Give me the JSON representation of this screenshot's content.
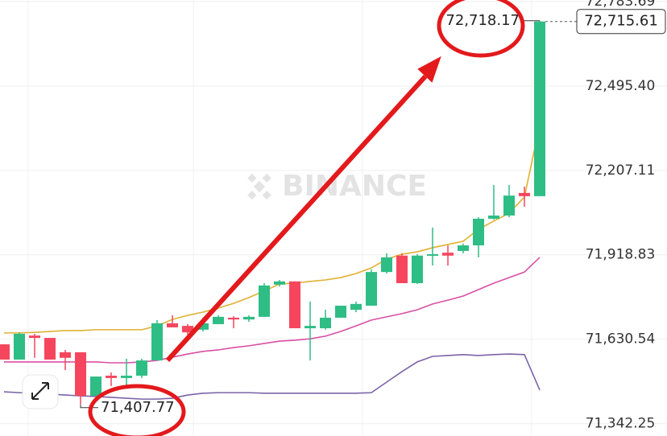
{
  "chart_data": {
    "type": "candlestick",
    "watermark": "BINANCE",
    "up_color": "#2ebd85",
    "down_color": "#f6465d",
    "open": [
      71613,
      71561,
      71643,
      71635,
      71586,
      71586,
      71437,
      71506,
      71498,
      71506,
      71558,
      71685,
      71676,
      71663,
      71682,
      71704,
      71698,
      71707,
      71817,
      71828,
      71668,
      71668,
      71704,
      71731,
      71745,
      71860,
      71916,
      71822,
      71916,
      71926,
      71932,
      71951,
      72042,
      72053,
      72130,
      72119
    ],
    "high": [
      71613,
      71654,
      71649,
      71635,
      71594,
      71586,
      71503,
      71517,
      71564,
      71564,
      71696,
      71712,
      71682,
      71704,
      71712,
      71709,
      71712,
      71822,
      71833,
      71828,
      71759,
      71731,
      71745,
      71759,
      71869,
      71924,
      71924,
      71921,
      72012,
      71951,
      71957,
      72047,
      72157,
      72157,
      72152,
      72718.17
    ],
    "low": [
      71561,
      71561,
      71567,
      71561,
      71525,
      71407.77,
      71437,
      71470,
      71470,
      71498,
      71558,
      71671,
      71646,
      71657,
      71682,
      71668,
      71690,
      71707,
      71811,
      71668,
      71558,
      71663,
      71704,
      71723,
      71745,
      71855,
      71822,
      71819,
      71882,
      71882,
      71924,
      71910,
      72039,
      72047,
      72083,
      72119
    ],
    "close": [
      71561,
      71649,
      71635,
      71561,
      71567,
      71437,
      71503,
      71498,
      71506,
      71558,
      71685,
      71671,
      71654,
      71685,
      71707,
      71698,
      71707,
      71814,
      71828,
      71668,
      71676,
      71704,
      71745,
      71751,
      71860,
      71910,
      71822,
      71916,
      71921,
      71916,
      71951,
      72042,
      72053,
      72121,
      72119,
      72715.61
    ],
    "moving_averages": [
      {
        "color": "#e0b132",
        "values": [
          71652,
          71652,
          71654,
          71657,
          71660,
          71660,
          71663,
          71663,
          71663,
          71663,
          71676,
          71698,
          71712,
          71723,
          71737,
          71753,
          71773,
          71795,
          71819,
          71822,
          71828,
          71833,
          71841,
          71855,
          71874,
          71904,
          71921,
          71929,
          71943,
          71954,
          71965,
          72006,
          72034,
          72061,
          72116,
          72363
        ]
      },
      {
        "color": "#d94fa5",
        "values": [
          71553,
          71553,
          71553,
          71553,
          71553,
          71553,
          71553,
          71550,
          71550,
          71553,
          71558,
          71569,
          71580,
          71589,
          71594,
          71602,
          71608,
          71616,
          71624,
          71627,
          71632,
          71641,
          71657,
          71676,
          71696,
          71707,
          71718,
          71731,
          71751,
          71764,
          71778,
          71800,
          71822,
          71841,
          71860,
          71910
        ]
      },
      {
        "color": "#7b63a8",
        "values": [
          71451,
          71448,
          71446,
          71443,
          71440,
          71437,
          71435,
          71432,
          71429,
          71426,
          71426,
          71429,
          71440,
          71446,
          71448,
          71448,
          71448,
          71446,
          71446,
          71446,
          71446,
          71446,
          71446,
          71446,
          71448,
          71484,
          71520,
          71553,
          71572,
          71575,
          71578,
          71575,
          71578,
          71580,
          71578,
          71457
        ]
      }
    ],
    "high_label": "72,718.17",
    "low_label": "71,407.77",
    "last_price_label": "72,715.61",
    "ylim": [
      71300,
      72789
    ],
    "yticks": [
      {
        "value": 72783.69,
        "label": "72,783.69"
      },
      {
        "value": 72495.4,
        "label": "72,495.40"
      },
      {
        "value": 72207.11,
        "label": "72,207.11"
      },
      {
        "value": 71918.83,
        "label": "71,918.83"
      },
      {
        "value": 71630.54,
        "label": "71,630.54"
      },
      {
        "value": 71342.25,
        "label": "71,342.25"
      }
    ],
    "grid": true
  }
}
